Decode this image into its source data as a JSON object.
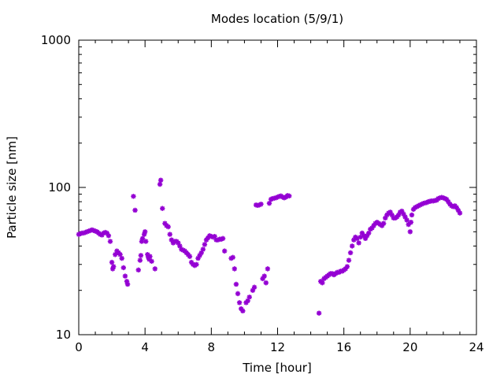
{
  "chart_data": {
    "type": "scatter",
    "title": "Modes location (5/9/1)",
    "xlabel": "Time [hour]",
    "ylabel": "Particle size [nm]",
    "xlim": [
      0,
      24
    ],
    "ylim": [
      10,
      1000
    ],
    "yscale": "log",
    "grid": false,
    "legend": "none",
    "x_ticks": [
      0,
      4,
      8,
      12,
      16,
      20,
      24
    ],
    "x_tick_labels": [
      "0",
      "4",
      "8",
      "12",
      "16",
      "20",
      "24"
    ],
    "y_ticks": [
      10,
      100,
      1000
    ],
    "y_tick_labels": [
      "10",
      "100",
      "1000"
    ],
    "marker_color": "#9400d3",
    "series": [
      {
        "points": [
          [
            0.0,
            48
          ],
          [
            0.1,
            48.5
          ],
          [
            0.2,
            49
          ],
          [
            0.3,
            49
          ],
          [
            0.4,
            49.5
          ],
          [
            0.5,
            50
          ],
          [
            0.6,
            50.5
          ],
          [
            0.7,
            51
          ],
          [
            0.8,
            51.5
          ],
          [
            0.9,
            51
          ],
          [
            1.0,
            50.5
          ],
          [
            1.1,
            50
          ],
          [
            1.2,
            49
          ],
          [
            1.3,
            48
          ],
          [
            1.4,
            47.5
          ],
          [
            1.5,
            49
          ],
          [
            1.6,
            49.5
          ],
          [
            1.7,
            49
          ],
          [
            1.8,
            47
          ],
          [
            1.9,
            43
          ],
          [
            2.0,
            31
          ],
          [
            2.05,
            28
          ],
          [
            2.1,
            29
          ],
          [
            2.2,
            35
          ],
          [
            2.3,
            37
          ],
          [
            2.4,
            36
          ],
          [
            2.5,
            35
          ],
          [
            2.6,
            33
          ],
          [
            2.7,
            28.5
          ],
          [
            2.8,
            25
          ],
          [
            2.9,
            23
          ],
          [
            2.95,
            22
          ],
          [
            3.3,
            87
          ],
          [
            3.4,
            70
          ],
          [
            3.6,
            27.5
          ],
          [
            3.7,
            32
          ],
          [
            3.75,
            34.5
          ],
          [
            3.8,
            43
          ],
          [
            3.85,
            45
          ],
          [
            3.95,
            48
          ],
          [
            4.0,
            50
          ],
          [
            4.05,
            43
          ],
          [
            4.15,
            35
          ],
          [
            4.2,
            33.5
          ],
          [
            4.25,
            32.5
          ],
          [
            4.3,
            34
          ],
          [
            4.4,
            31.5
          ],
          [
            4.6,
            28
          ],
          [
            4.9,
            105
          ],
          [
            4.95,
            112
          ],
          [
            5.05,
            72
          ],
          [
            5.2,
            57
          ],
          [
            5.3,
            55
          ],
          [
            5.4,
            54
          ],
          [
            5.5,
            48
          ],
          [
            5.6,
            44
          ],
          [
            5.7,
            42
          ],
          [
            5.8,
            43
          ],
          [
            5.9,
            43
          ],
          [
            6.0,
            42
          ],
          [
            6.1,
            40
          ],
          [
            6.2,
            38
          ],
          [
            6.3,
            37.5
          ],
          [
            6.4,
            37
          ],
          [
            6.5,
            36
          ],
          [
            6.6,
            35
          ],
          [
            6.7,
            34
          ],
          [
            6.8,
            31
          ],
          [
            6.9,
            30
          ],
          [
            7.0,
            29.5
          ],
          [
            7.1,
            30
          ],
          [
            7.2,
            33
          ],
          [
            7.3,
            34.5
          ],
          [
            7.4,
            36
          ],
          [
            7.5,
            38
          ],
          [
            7.6,
            41
          ],
          [
            7.7,
            44
          ],
          [
            7.8,
            45.5
          ],
          [
            7.9,
            47
          ],
          [
            8.0,
            46.5
          ],
          [
            8.1,
            46
          ],
          [
            8.2,
            46.5
          ],
          [
            8.3,
            44
          ],
          [
            8.4,
            44
          ],
          [
            8.5,
            44.5
          ],
          [
            8.6,
            44.5
          ],
          [
            8.7,
            45
          ],
          [
            8.8,
            37
          ],
          [
            9.2,
            33
          ],
          [
            9.3,
            33.5
          ],
          [
            9.4,
            28
          ],
          [
            9.5,
            22
          ],
          [
            9.6,
            19
          ],
          [
            9.7,
            16.5
          ],
          [
            9.8,
            15
          ],
          [
            9.9,
            14.5
          ],
          [
            10.1,
            16.5
          ],
          [
            10.2,
            17
          ],
          [
            10.3,
            18
          ],
          [
            10.5,
            20
          ],
          [
            10.6,
            21
          ],
          [
            10.7,
            76
          ],
          [
            10.8,
            75.5
          ],
          [
            10.9,
            76
          ],
          [
            11.0,
            77
          ],
          [
            11.1,
            24
          ],
          [
            11.2,
            25
          ],
          [
            11.3,
            22.5
          ],
          [
            11.4,
            28
          ],
          [
            11.5,
            78
          ],
          [
            11.6,
            83
          ],
          [
            11.7,
            84
          ],
          [
            11.8,
            84.5
          ],
          [
            11.9,
            85
          ],
          [
            12.0,
            86
          ],
          [
            12.1,
            87
          ],
          [
            12.2,
            87.5
          ],
          [
            12.3,
            86
          ],
          [
            12.4,
            85
          ],
          [
            12.5,
            86
          ],
          [
            12.6,
            88
          ],
          [
            12.7,
            87.5
          ],
          [
            14.5,
            14
          ],
          [
            14.6,
            23
          ],
          [
            14.7,
            22.5
          ],
          [
            14.8,
            24
          ],
          [
            14.9,
            24.5
          ],
          [
            15.0,
            25
          ],
          [
            15.1,
            25.5
          ],
          [
            15.2,
            26
          ],
          [
            15.3,
            26
          ],
          [
            15.4,
            25.5
          ],
          [
            15.5,
            26
          ],
          [
            15.6,
            26.5
          ],
          [
            15.7,
            26.5
          ],
          [
            15.8,
            27
          ],
          [
            15.9,
            27
          ],
          [
            16.0,
            27.5
          ],
          [
            16.1,
            28
          ],
          [
            16.2,
            29
          ],
          [
            16.3,
            32
          ],
          [
            16.4,
            36
          ],
          [
            16.5,
            40
          ],
          [
            16.6,
            44
          ],
          [
            16.7,
            46
          ],
          [
            16.8,
            45
          ],
          [
            16.9,
            42
          ],
          [
            17.0,
            46
          ],
          [
            17.1,
            49
          ],
          [
            17.2,
            47
          ],
          [
            17.3,
            45
          ],
          [
            17.4,
            47
          ],
          [
            17.5,
            49
          ],
          [
            17.6,
            52
          ],
          [
            17.7,
            53
          ],
          [
            17.8,
            55
          ],
          [
            17.9,
            57
          ],
          [
            18.0,
            58
          ],
          [
            18.1,
            57
          ],
          [
            18.2,
            56
          ],
          [
            18.3,
            55
          ],
          [
            18.4,
            57
          ],
          [
            18.5,
            62
          ],
          [
            18.6,
            65
          ],
          [
            18.7,
            67
          ],
          [
            18.8,
            68
          ],
          [
            18.9,
            65
          ],
          [
            19.0,
            62
          ],
          [
            19.1,
            62
          ],
          [
            19.2,
            63
          ],
          [
            19.3,
            65
          ],
          [
            19.4,
            68
          ],
          [
            19.5,
            69
          ],
          [
            19.6,
            66
          ],
          [
            19.7,
            63
          ],
          [
            19.8,
            60
          ],
          [
            19.9,
            56
          ],
          [
            20.0,
            50
          ],
          [
            20.05,
            58
          ],
          [
            20.1,
            65
          ],
          [
            20.2,
            71
          ],
          [
            20.3,
            73
          ],
          [
            20.4,
            74
          ],
          [
            20.5,
            75
          ],
          [
            20.6,
            76
          ],
          [
            20.7,
            77
          ],
          [
            20.8,
            78
          ],
          [
            20.9,
            78.5
          ],
          [
            21.0,
            79
          ],
          [
            21.1,
            80
          ],
          [
            21.2,
            80.5
          ],
          [
            21.3,
            81
          ],
          [
            21.4,
            81
          ],
          [
            21.5,
            81.5
          ],
          [
            21.6,
            82
          ],
          [
            21.7,
            84
          ],
          [
            21.8,
            85
          ],
          [
            21.9,
            85.5
          ],
          [
            22.0,
            85
          ],
          [
            22.1,
            84
          ],
          [
            22.2,
            83
          ],
          [
            22.3,
            80
          ],
          [
            22.4,
            77
          ],
          [
            22.5,
            75
          ],
          [
            22.6,
            74
          ],
          [
            22.7,
            75
          ],
          [
            22.8,
            73
          ],
          [
            22.9,
            70
          ],
          [
            23.0,
            67
          ]
        ]
      }
    ]
  }
}
